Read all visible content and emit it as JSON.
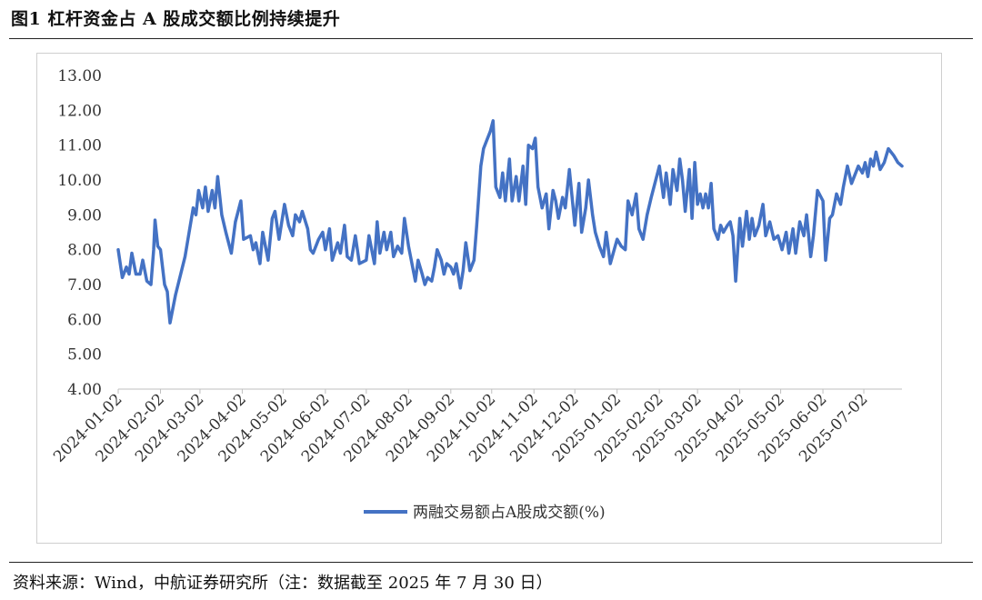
{
  "figure": {
    "title": "图1 杠杆资金占 A 股成交额比例持续提升",
    "source": "资料来源：Wind，中航证券研究所（注：数据截至 2025 年 7 月 30 日）"
  },
  "chart_data": {
    "type": "line",
    "title": "",
    "xlabel": "",
    "ylabel": "",
    "ylim": [
      4.0,
      13.0
    ],
    "y_ticks": [
      "4.00",
      "5.00",
      "6.00",
      "7.00",
      "8.00",
      "9.00",
      "10.00",
      "11.00",
      "12.00",
      "13.00"
    ],
    "x_tick_labels": [
      "2024-01-02",
      "2024-02-02",
      "2024-03-02",
      "2024-04-02",
      "2024-05-02",
      "2024-06-02",
      "2024-07-02",
      "2024-08-02",
      "2024-09-02",
      "2024-10-02",
      "2024-11-02",
      "2024-12-02",
      "2025-01-02",
      "2025-02-02",
      "2025-03-02",
      "2025-04-02",
      "2025-05-02",
      "2025-06-02",
      "2025-07-02"
    ],
    "x_range": [
      "2024-01-02",
      "2025-07-30"
    ],
    "grid": false,
    "legend_position": "bottom",
    "color": "#4472C4",
    "series": [
      {
        "name": "两融交易额占A股成交额(%)",
        "points": [
          [
            "2024-01-02",
            8.0
          ],
          [
            "2024-01-05",
            7.2
          ],
          [
            "2024-01-08",
            7.5
          ],
          [
            "2024-01-10",
            7.3
          ],
          [
            "2024-01-12",
            7.9
          ],
          [
            "2024-01-15",
            7.3
          ],
          [
            "2024-01-18",
            7.3
          ],
          [
            "2024-01-20",
            7.7
          ],
          [
            "2024-01-23",
            7.1
          ],
          [
            "2024-01-26",
            7.0
          ],
          [
            "2024-01-28",
            8.0
          ],
          [
            "2024-01-29",
            8.85
          ],
          [
            "2024-01-31",
            8.1
          ],
          [
            "2024-02-02",
            8.0
          ],
          [
            "2024-02-05",
            7.0
          ],
          [
            "2024-02-07",
            6.8
          ],
          [
            "2024-02-08",
            6.3
          ],
          [
            "2024-02-09",
            5.9
          ],
          [
            "2024-02-13",
            6.7
          ],
          [
            "2024-02-20",
            7.8
          ],
          [
            "2024-02-23",
            8.5
          ],
          [
            "2024-02-26",
            9.2
          ],
          [
            "2024-02-28",
            9.0
          ],
          [
            "2024-03-01",
            9.7
          ],
          [
            "2024-03-04",
            9.2
          ],
          [
            "2024-03-06",
            9.8
          ],
          [
            "2024-03-08",
            9.1
          ],
          [
            "2024-03-11",
            9.7
          ],
          [
            "2024-03-13",
            9.2
          ],
          [
            "2024-03-15",
            10.1
          ],
          [
            "2024-03-18",
            9.0
          ],
          [
            "2024-03-21",
            8.5
          ],
          [
            "2024-03-25",
            7.9
          ],
          [
            "2024-03-28",
            8.8
          ],
          [
            "2024-04-01",
            9.4
          ],
          [
            "2024-04-03",
            8.3
          ],
          [
            "2024-04-08",
            8.4
          ],
          [
            "2024-04-10",
            8.0
          ],
          [
            "2024-04-12",
            8.2
          ],
          [
            "2024-04-15",
            7.6
          ],
          [
            "2024-04-17",
            8.5
          ],
          [
            "2024-04-21",
            7.7
          ],
          [
            "2024-04-24",
            8.9
          ],
          [
            "2024-04-26",
            9.1
          ],
          [
            "2024-04-29",
            8.3
          ],
          [
            "2024-05-03",
            9.3
          ],
          [
            "2024-05-06",
            8.7
          ],
          [
            "2024-05-09",
            8.4
          ],
          [
            "2024-05-11",
            9.0
          ],
          [
            "2024-05-14",
            8.8
          ],
          [
            "2024-05-16",
            9.1
          ],
          [
            "2024-05-20",
            8.6
          ],
          [
            "2024-05-22",
            8.0
          ],
          [
            "2024-05-24",
            7.9
          ],
          [
            "2024-05-28",
            8.3
          ],
          [
            "2024-05-31",
            8.5
          ],
          [
            "2024-06-02",
            8.0
          ],
          [
            "2024-06-05",
            8.6
          ],
          [
            "2024-06-07",
            7.7
          ],
          [
            "2024-06-11",
            8.2
          ],
          [
            "2024-06-13",
            7.9
          ],
          [
            "2024-06-16",
            8.7
          ],
          [
            "2024-06-18",
            7.8
          ],
          [
            "2024-06-21",
            7.7
          ],
          [
            "2024-06-24",
            8.4
          ],
          [
            "2024-06-27",
            7.6
          ],
          [
            "2024-07-02",
            7.7
          ],
          [
            "2024-07-04",
            8.4
          ],
          [
            "2024-07-08",
            7.6
          ],
          [
            "2024-07-10",
            8.8
          ],
          [
            "2024-07-12",
            7.9
          ],
          [
            "2024-07-15",
            8.5
          ],
          [
            "2024-07-17",
            8.0
          ],
          [
            "2024-07-20",
            8.5
          ],
          [
            "2024-07-22",
            7.8
          ],
          [
            "2024-07-25",
            8.1
          ],
          [
            "2024-07-28",
            7.9
          ],
          [
            "2024-07-30",
            8.9
          ],
          [
            "2024-08-02",
            8.1
          ],
          [
            "2024-08-05",
            7.5
          ],
          [
            "2024-08-07",
            7.1
          ],
          [
            "2024-08-09",
            7.7
          ],
          [
            "2024-08-12",
            7.3
          ],
          [
            "2024-08-14",
            7.0
          ],
          [
            "2024-08-16",
            7.2
          ],
          [
            "2024-08-19",
            7.1
          ],
          [
            "2024-08-21",
            7.5
          ],
          [
            "2024-08-23",
            8.0
          ],
          [
            "2024-08-26",
            7.7
          ],
          [
            "2024-08-28",
            7.3
          ],
          [
            "2024-08-30",
            7.6
          ],
          [
            "2024-09-02",
            7.5
          ],
          [
            "2024-09-04",
            7.3
          ],
          [
            "2024-09-06",
            7.6
          ],
          [
            "2024-09-09",
            6.9
          ],
          [
            "2024-09-11",
            7.4
          ],
          [
            "2024-09-13",
            8.2
          ],
          [
            "2024-09-16",
            7.4
          ],
          [
            "2024-09-19",
            7.7
          ],
          [
            "2024-09-21",
            8.7
          ],
          [
            "2024-09-24",
            10.4
          ],
          [
            "2024-09-26",
            10.9
          ],
          [
            "2024-09-28",
            11.1
          ],
          [
            "2024-10-01",
            11.4
          ],
          [
            "2024-10-03",
            11.7
          ],
          [
            "2024-10-05",
            9.8
          ],
          [
            "2024-10-08",
            9.5
          ],
          [
            "2024-10-10",
            10.2
          ],
          [
            "2024-10-12",
            9.4
          ],
          [
            "2024-10-15",
            10.6
          ],
          [
            "2024-10-17",
            9.4
          ],
          [
            "2024-10-20",
            10.1
          ],
          [
            "2024-10-22",
            9.4
          ],
          [
            "2024-10-25",
            10.4
          ],
          [
            "2024-10-27",
            9.3
          ],
          [
            "2024-10-29",
            11.0
          ],
          [
            "2024-11-01",
            10.9
          ],
          [
            "2024-11-03",
            11.2
          ],
          [
            "2024-11-05",
            9.8
          ],
          [
            "2024-11-08",
            9.2
          ],
          [
            "2024-11-11",
            9.6
          ],
          [
            "2024-11-13",
            8.6
          ],
          [
            "2024-11-16",
            9.7
          ],
          [
            "2024-11-18",
            9.4
          ],
          [
            "2024-11-20",
            8.9
          ],
          [
            "2024-11-23",
            9.5
          ],
          [
            "2024-11-25",
            9.2
          ],
          [
            "2024-11-28",
            10.3
          ],
          [
            "2024-12-02",
            8.7
          ],
          [
            "2024-12-05",
            9.9
          ],
          [
            "2024-12-07",
            8.5
          ],
          [
            "2024-12-10",
            9.2
          ],
          [
            "2024-12-12",
            10.0
          ],
          [
            "2024-12-15",
            9.0
          ],
          [
            "2024-12-17",
            8.5
          ],
          [
            "2024-12-20",
            8.1
          ],
          [
            "2024-12-23",
            7.8
          ],
          [
            "2024-12-25",
            8.5
          ],
          [
            "2024-12-28",
            7.6
          ],
          [
            "2025-01-02",
            8.3
          ],
          [
            "2025-01-05",
            8.1
          ],
          [
            "2025-01-08",
            8.0
          ],
          [
            "2025-01-10",
            9.4
          ],
          [
            "2025-01-13",
            9.0
          ],
          [
            "2025-01-16",
            9.6
          ],
          [
            "2025-01-18",
            8.6
          ],
          [
            "2025-01-21",
            8.3
          ],
          [
            "2025-01-24",
            9.0
          ],
          [
            "2025-01-27",
            9.5
          ],
          [
            "2025-02-02",
            10.4
          ],
          [
            "2025-02-05",
            9.5
          ],
          [
            "2025-02-07",
            10.2
          ],
          [
            "2025-02-10",
            9.3
          ],
          [
            "2025-02-12",
            10.3
          ],
          [
            "2025-02-15",
            9.7
          ],
          [
            "2025-02-17",
            10.6
          ],
          [
            "2025-02-19",
            10.0
          ],
          [
            "2025-02-21",
            9.1
          ],
          [
            "2025-02-24",
            10.3
          ],
          [
            "2025-02-26",
            8.9
          ],
          [
            "2025-02-28",
            10.5
          ],
          [
            "2025-03-02",
            9.3
          ],
          [
            "2025-03-04",
            9.6
          ],
          [
            "2025-03-06",
            9.2
          ],
          [
            "2025-03-08",
            9.6
          ],
          [
            "2025-03-10",
            9.2
          ],
          [
            "2025-03-12",
            9.9
          ],
          [
            "2025-03-14",
            8.6
          ],
          [
            "2025-03-17",
            8.3
          ],
          [
            "2025-03-19",
            8.7
          ],
          [
            "2025-03-21",
            8.5
          ],
          [
            "2025-03-24",
            8.7
          ],
          [
            "2025-03-26",
            8.8
          ],
          [
            "2025-03-28",
            8.4
          ],
          [
            "2025-03-30",
            7.1
          ],
          [
            "2025-04-02",
            8.9
          ],
          [
            "2025-04-04",
            8.1
          ],
          [
            "2025-04-07",
            9.1
          ],
          [
            "2025-04-09",
            8.3
          ],
          [
            "2025-04-11",
            8.9
          ],
          [
            "2025-04-13",
            8.4
          ],
          [
            "2025-04-16",
            8.7
          ],
          [
            "2025-04-19",
            9.3
          ],
          [
            "2025-04-21",
            8.4
          ],
          [
            "2025-04-24",
            8.8
          ],
          [
            "2025-04-27",
            8.3
          ],
          [
            "2025-04-30",
            8.4
          ],
          [
            "2025-05-03",
            8.0
          ],
          [
            "2025-05-06",
            8.5
          ],
          [
            "2025-05-08",
            7.9
          ],
          [
            "2025-05-11",
            8.6
          ],
          [
            "2025-05-13",
            7.9
          ],
          [
            "2025-05-16",
            8.8
          ],
          [
            "2025-05-19",
            8.4
          ],
          [
            "2025-05-21",
            9.0
          ],
          [
            "2025-05-24",
            7.8
          ],
          [
            "2025-05-26",
            8.4
          ],
          [
            "2025-05-29",
            9.7
          ],
          [
            "2025-06-02",
            9.4
          ],
          [
            "2025-06-04",
            7.7
          ],
          [
            "2025-06-07",
            8.9
          ],
          [
            "2025-06-09",
            9.0
          ],
          [
            "2025-06-12",
            9.6
          ],
          [
            "2025-06-15",
            9.3
          ],
          [
            "2025-06-17",
            9.8
          ],
          [
            "2025-06-20",
            10.4
          ],
          [
            "2025-06-23",
            9.9
          ],
          [
            "2025-06-25",
            10.1
          ],
          [
            "2025-06-28",
            10.4
          ],
          [
            "2025-07-01",
            10.2
          ],
          [
            "2025-07-03",
            10.5
          ],
          [
            "2025-07-05",
            10.1
          ],
          [
            "2025-07-07",
            10.6
          ],
          [
            "2025-07-09",
            10.4
          ],
          [
            "2025-07-11",
            10.8
          ],
          [
            "2025-07-14",
            10.3
          ],
          [
            "2025-07-17",
            10.5
          ],
          [
            "2025-07-20",
            10.9
          ],
          [
            "2025-07-24",
            10.7
          ],
          [
            "2025-07-27",
            10.5
          ],
          [
            "2025-07-30",
            10.4
          ]
        ]
      }
    ]
  }
}
